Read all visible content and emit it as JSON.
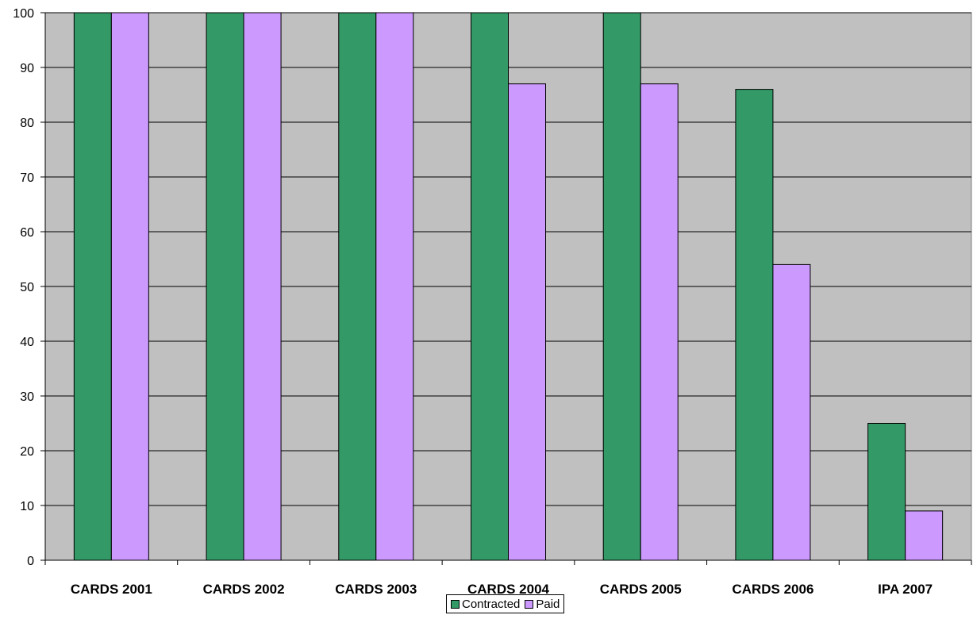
{
  "chart_data": {
    "type": "bar",
    "categories": [
      "CARDS 2001",
      "CARDS 2002",
      "CARDS 2003",
      "CARDS 2004",
      "CARDS 2005",
      "CARDS 2006",
      "IPA 2007"
    ],
    "series": [
      {
        "name": "Contracted",
        "values": [
          100,
          100,
          100,
          100,
          100,
          86,
          25
        ],
        "color": "#339966"
      },
      {
        "name": "Paid",
        "values": [
          100,
          100,
          100,
          87,
          87,
          54,
          9
        ],
        "color": "#CC99FF"
      }
    ],
    "ylim": [
      0,
      100
    ],
    "yticks": [
      0,
      10,
      20,
      30,
      40,
      50,
      60,
      70,
      80,
      90,
      100
    ],
    "title": "",
    "xlabel": "",
    "ylabel": "",
    "grid": true,
    "plot_background": "#C0C0C0",
    "legend": "bottom-center"
  }
}
